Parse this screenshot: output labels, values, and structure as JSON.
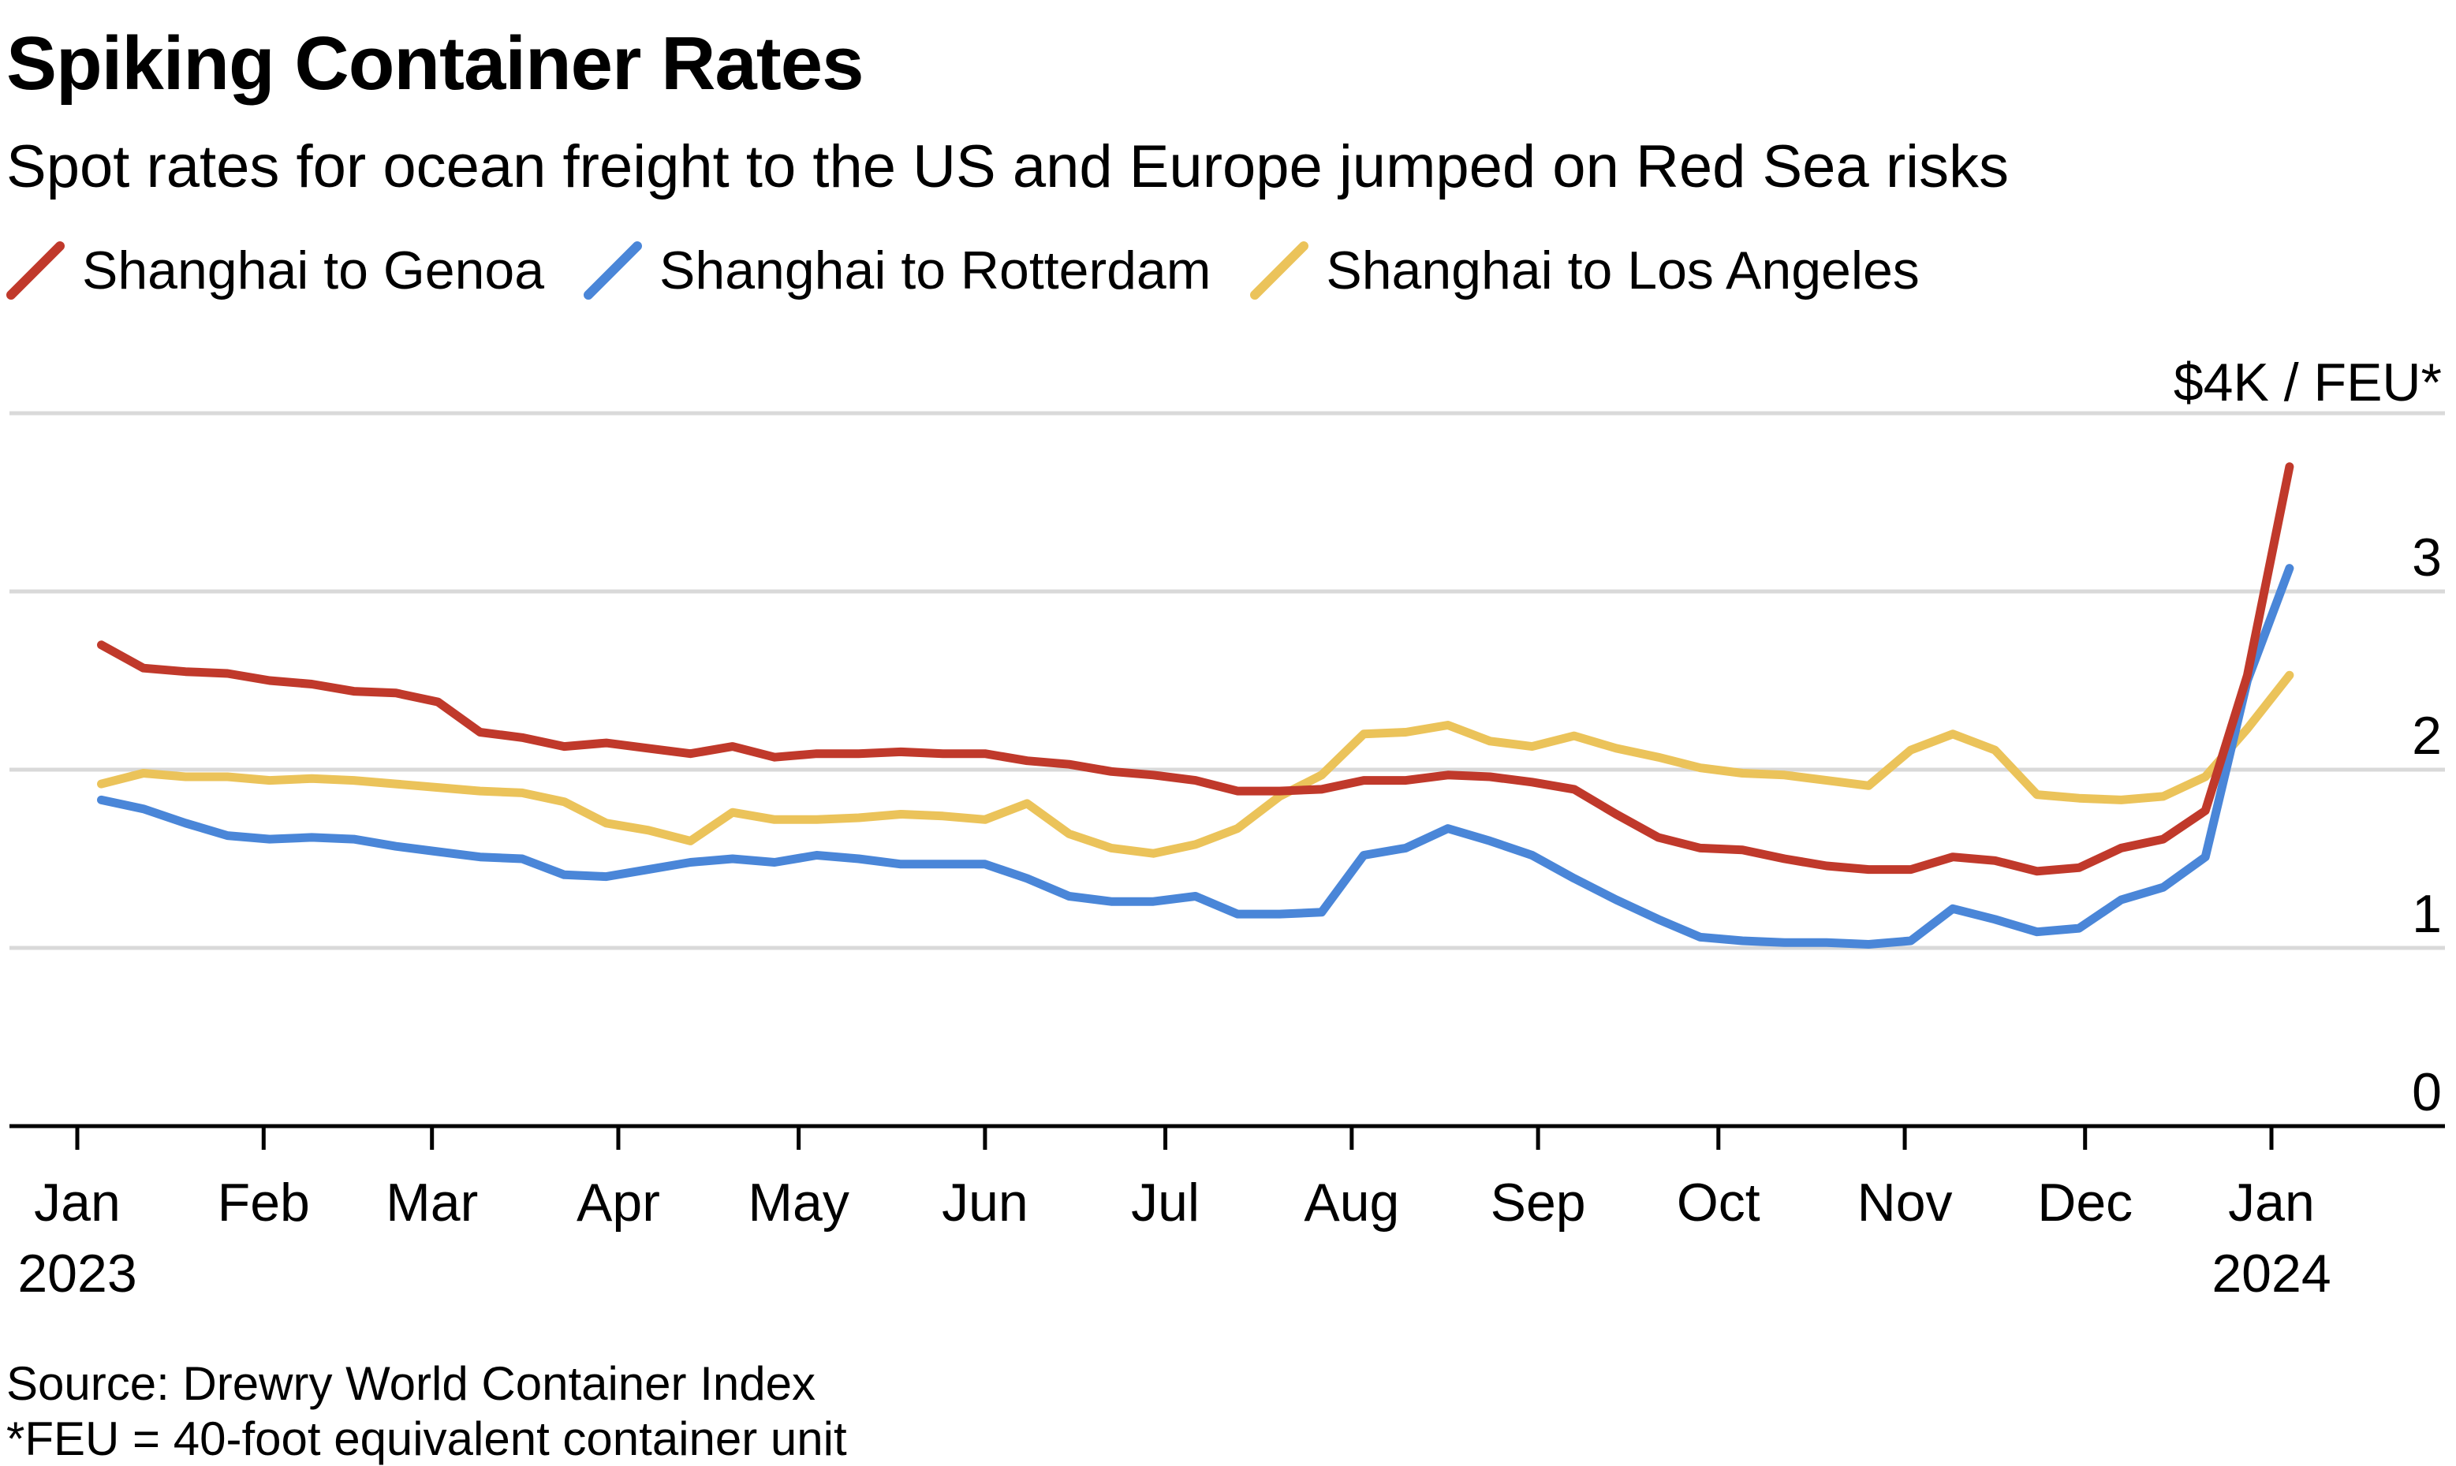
{
  "title": "Spiking Container Rates",
  "subtitle": "Spot rates for ocean freight to the US and Europe jumped on Red Sea risks",
  "source": "Source: Drewry World Container Index",
  "footnote": "*FEU = 40-foot equivalent container unit",
  "colors": {
    "genoa": "#c0392b",
    "rotterdam": "#4a86d8",
    "los_angeles": "#ebc35a",
    "grid": "#d9d9d9",
    "axis": "#000000"
  },
  "chart_data": {
    "type": "line",
    "title": "Spiking Container Rates",
    "subtitle": "Spot rates for ocean freight to the US and Europe jumped on Red Sea risks",
    "ylabel": "",
    "y_unit_label": "$4K / FEU*",
    "ylim": [
      0,
      4
    ],
    "y_ticks": [
      0,
      1,
      2,
      3,
      4
    ],
    "y_tick_labels": [
      "0",
      "1",
      "2",
      "3",
      "$4K / FEU*"
    ],
    "grid": true,
    "legend_position": "top-left",
    "x_ticks": [
      {
        "date": "2023-01-01",
        "label": "Jan",
        "sublabel": "2023"
      },
      {
        "date": "2023-02-01",
        "label": "Feb",
        "sublabel": ""
      },
      {
        "date": "2023-03-01",
        "label": "Mar",
        "sublabel": ""
      },
      {
        "date": "2023-04-01",
        "label": "Apr",
        "sublabel": ""
      },
      {
        "date": "2023-05-01",
        "label": "May",
        "sublabel": ""
      },
      {
        "date": "2023-06-01",
        "label": "Jun",
        "sublabel": ""
      },
      {
        "date": "2023-07-01",
        "label": "Jul",
        "sublabel": ""
      },
      {
        "date": "2023-08-01",
        "label": "Aug",
        "sublabel": ""
      },
      {
        "date": "2023-09-01",
        "label": "Sep",
        "sublabel": ""
      },
      {
        "date": "2023-10-01",
        "label": "Oct",
        "sublabel": ""
      },
      {
        "date": "2023-11-01",
        "label": "Nov",
        "sublabel": ""
      },
      {
        "date": "2023-12-01",
        "label": "Dec",
        "sublabel": ""
      },
      {
        "date": "2024-01-01",
        "label": "Jan",
        "sublabel": "2024"
      }
    ],
    "x": [
      "2023-01-05",
      "2023-01-12",
      "2023-01-19",
      "2023-01-26",
      "2023-02-02",
      "2023-02-09",
      "2023-02-16",
      "2023-02-23",
      "2023-03-02",
      "2023-03-09",
      "2023-03-16",
      "2023-03-23",
      "2023-03-30",
      "2023-04-06",
      "2023-04-13",
      "2023-04-20",
      "2023-04-27",
      "2023-05-04",
      "2023-05-11",
      "2023-05-18",
      "2023-05-25",
      "2023-06-01",
      "2023-06-08",
      "2023-06-15",
      "2023-06-22",
      "2023-06-29",
      "2023-07-06",
      "2023-07-13",
      "2023-07-20",
      "2023-07-27",
      "2023-08-03",
      "2023-08-10",
      "2023-08-17",
      "2023-08-24",
      "2023-08-31",
      "2023-09-07",
      "2023-09-14",
      "2023-09-21",
      "2023-09-28",
      "2023-10-05",
      "2023-10-12",
      "2023-10-19",
      "2023-10-26",
      "2023-11-02",
      "2023-11-09",
      "2023-11-16",
      "2023-11-23",
      "2023-11-30",
      "2023-12-07",
      "2023-12-14",
      "2023-12-21",
      "2023-12-28",
      "2024-01-04"
    ],
    "series": [
      {
        "name": "Shanghai to Genoa",
        "color_key": "genoa",
        "values": [
          2.7,
          2.57,
          2.55,
          2.54,
          2.5,
          2.48,
          2.44,
          2.43,
          2.38,
          2.21,
          2.18,
          2.13,
          2.15,
          2.12,
          2.09,
          2.13,
          2.07,
          2.09,
          2.09,
          2.1,
          2.09,
          2.09,
          2.05,
          2.03,
          1.99,
          1.97,
          1.94,
          1.88,
          1.88,
          1.89,
          1.94,
          1.94,
          1.97,
          1.96,
          1.93,
          1.89,
          1.75,
          1.62,
          1.56,
          1.55,
          1.5,
          1.46,
          1.44,
          1.44,
          1.51,
          1.49,
          1.43,
          1.45,
          1.56,
          1.61,
          1.77,
          2.53,
          3.7
        ]
      },
      {
        "name": "Shanghai to Rotterdam",
        "color_key": "rotterdam",
        "values": [
          1.83,
          1.78,
          1.7,
          1.63,
          1.61,
          1.62,
          1.61,
          1.57,
          1.54,
          1.51,
          1.5,
          1.41,
          1.4,
          1.44,
          1.48,
          1.5,
          1.48,
          1.52,
          1.5,
          1.47,
          1.47,
          1.47,
          1.39,
          1.29,
          1.26,
          1.26,
          1.29,
          1.19,
          1.19,
          1.2,
          1.52,
          1.56,
          1.67,
          1.6,
          1.52,
          1.39,
          1.27,
          1.16,
          1.06,
          1.04,
          1.03,
          1.03,
          1.02,
          1.04,
          1.22,
          1.16,
          1.09,
          1.11,
          1.27,
          1.34,
          1.51,
          2.5,
          3.13
        ]
      },
      {
        "name": "Shanghai to Los Angeles",
        "color_key": "los_angeles",
        "values": [
          1.92,
          1.98,
          1.96,
          1.96,
          1.94,
          1.95,
          1.94,
          1.92,
          1.9,
          1.88,
          1.87,
          1.82,
          1.7,
          1.66,
          1.6,
          1.76,
          1.72,
          1.72,
          1.73,
          1.75,
          1.74,
          1.72,
          1.81,
          1.64,
          1.56,
          1.53,
          1.58,
          1.67,
          1.85,
          1.97,
          2.2,
          2.21,
          2.25,
          2.16,
          2.13,
          2.19,
          2.12,
          2.07,
          2.01,
          1.98,
          1.97,
          1.94,
          1.91,
          2.11,
          2.2,
          2.11,
          1.86,
          1.84,
          1.83,
          1.85,
          1.96,
          2.23,
          2.53
        ]
      }
    ]
  }
}
